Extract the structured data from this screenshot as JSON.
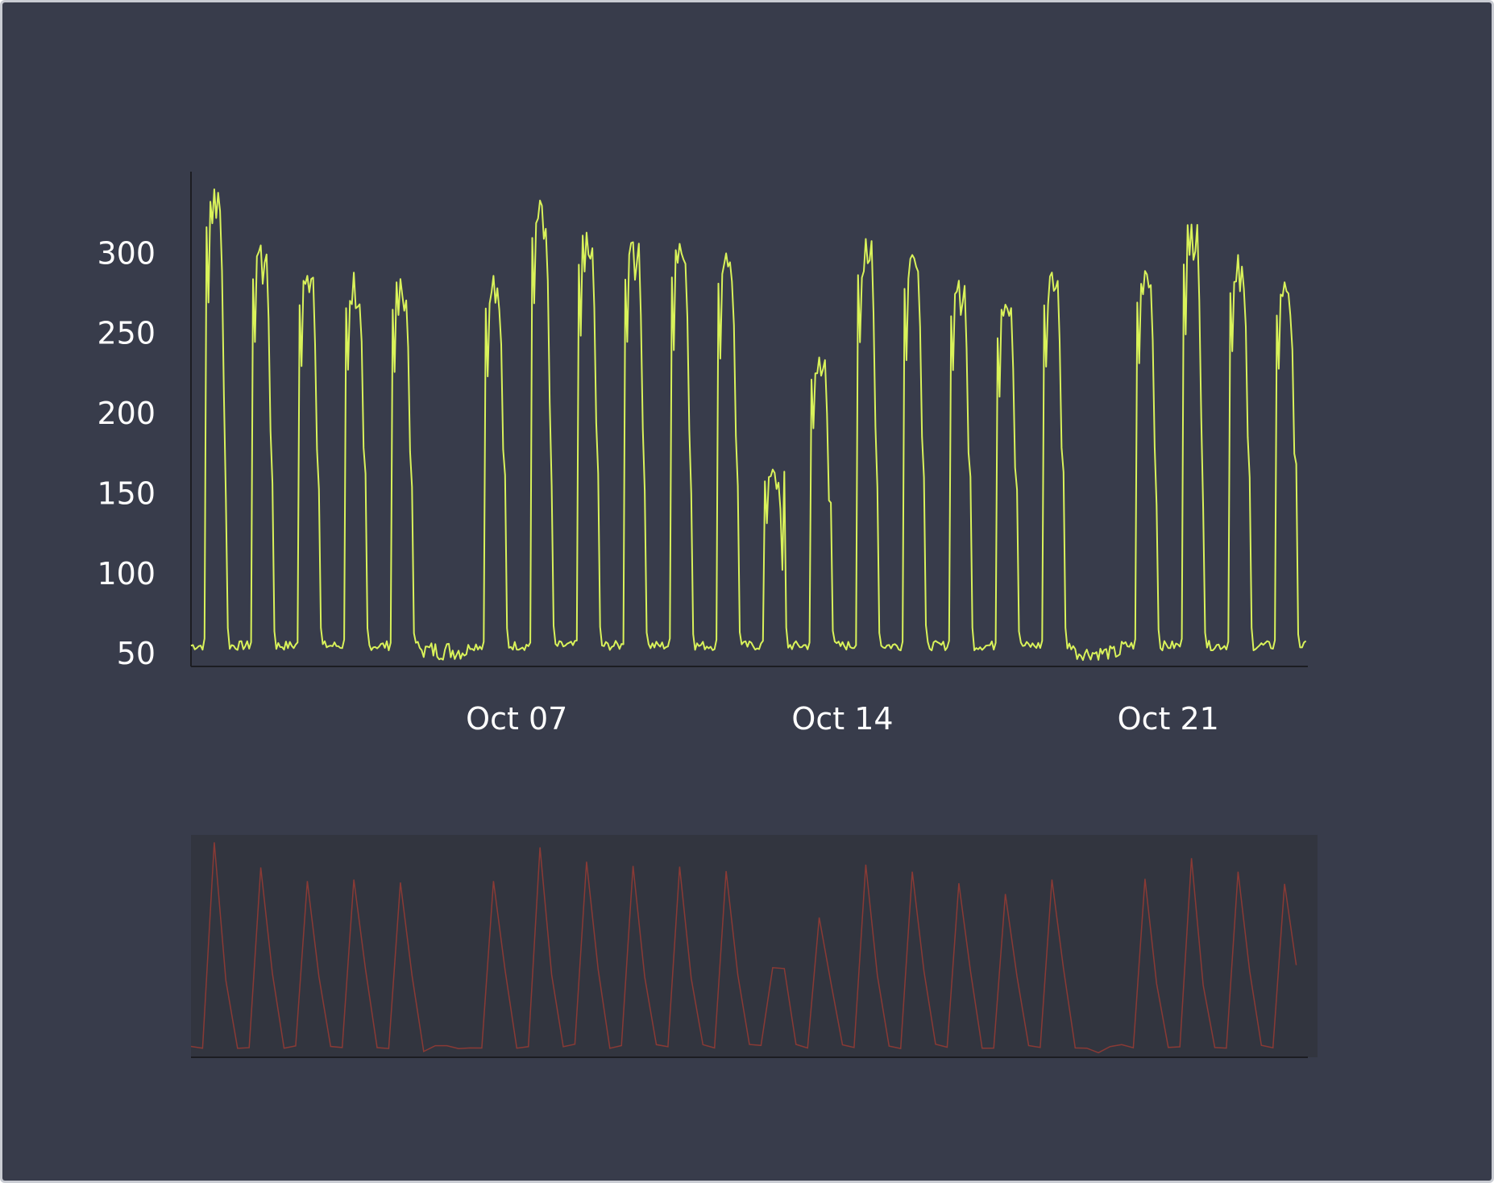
{
  "colors": {
    "background": "#383c4b",
    "main_line": "#d9f25a",
    "brush_line": "#8a3a35",
    "brush_background": "#32353f",
    "axis": "#1c1d22",
    "text": "#ffffff"
  },
  "chart_data": [
    {
      "type": "line",
      "role": "main",
      "title": "",
      "xlabel": "",
      "ylabel": "",
      "x_unit": "date",
      "xlim": [
        "2024-09-30",
        "2024-10-24 00:00"
      ],
      "ylim": [
        42,
        346
      ],
      "yticks": [
        50,
        100,
        150,
        200,
        250,
        300
      ],
      "ytick_labels": [
        "50",
        "100",
        "150",
        "200",
        "250",
        "300"
      ],
      "xticks": [
        "2024-10-07",
        "2024-10-14",
        "2024-10-21"
      ],
      "xtick_labels": [
        "Oct 07",
        "Oct 14",
        "Oct 21"
      ],
      "grid": false,
      "legend": "none",
      "series": [
        {
          "x_start": "2024-09-30T00:00",
          "step_hours": 1,
          "daily_profile": "nights and weekend days ~48-58, weekday daytime plateau with peak values listed below",
          "day_peaks": [
            {
              "date": "2024-09-30",
              "peak": 340
            },
            {
              "date": "2024-10-01",
              "peak": 305
            },
            {
              "date": "2024-10-02",
              "peak": 286
            },
            {
              "date": "2024-10-03",
              "peak": 288
            },
            {
              "date": "2024-10-04",
              "peak": 284
            },
            {
              "date": "2024-10-05",
              "peak": 58
            },
            {
              "date": "2024-10-06",
              "peak": 286
            },
            {
              "date": "2024-10-07",
              "peak": 333
            },
            {
              "date": "2024-10-08",
              "peak": 313
            },
            {
              "date": "2024-10-09",
              "peak": 307
            },
            {
              "date": "2024-10-10",
              "peak": 306
            },
            {
              "date": "2024-10-11",
              "peak": 300
            },
            {
              "date": "2024-10-12",
              "peak": 165
            },
            {
              "date": "2024-10-13",
              "peak": 235
            },
            {
              "date": "2024-10-14",
              "peak": 309
            },
            {
              "date": "2024-10-15",
              "peak": 299
            },
            {
              "date": "2024-10-16",
              "peak": 283
            },
            {
              "date": "2024-10-17",
              "peak": 268
            },
            {
              "date": "2024-10-18",
              "peak": 288
            },
            {
              "date": "2024-10-19",
              "peak": 55
            },
            {
              "date": "2024-10-20",
              "peak": 289
            },
            {
              "date": "2024-10-21",
              "peak": 318
            },
            {
              "date": "2024-10-22",
              "peak": 299
            },
            {
              "date": "2024-10-23",
              "peak": 282
            }
          ]
        }
      ]
    },
    {
      "type": "line",
      "role": "brush-overview",
      "title": "",
      "xlabel": "",
      "ylabel": "",
      "grid": false,
      "legend": "none",
      "description_of_series": "same series downsampled (every 6 hours), drawn as a thin line in a shaded navigator strip"
    }
  ]
}
